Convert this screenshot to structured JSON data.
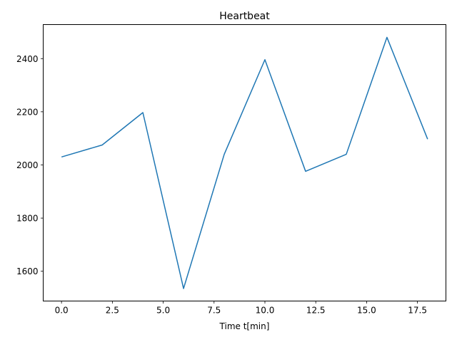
{
  "chart_data": {
    "type": "line",
    "title": "Heartbeat",
    "xlabel": "Time t[min]",
    "ylabel": "",
    "xlim": [
      -0.9,
      18.9
    ],
    "ylim": [
      1488,
      2528
    ],
    "x_ticks": [
      0.0,
      2.5,
      5.0,
      7.5,
      10.0,
      12.5,
      15.0,
      17.5
    ],
    "x_tick_labels": [
      "0.0",
      "2.5",
      "5.0",
      "7.5",
      "10.0",
      "12.5",
      "15.0",
      "17.5"
    ],
    "y_ticks": [
      1600,
      1800,
      2000,
      2200,
      2400
    ],
    "y_tick_labels": [
      "1600",
      "1800",
      "2000",
      "2200",
      "2400"
    ],
    "grid": false,
    "color": "#1f77b4",
    "series": [
      {
        "x": [
          0,
          2,
          4,
          6,
          8,
          10,
          12,
          14,
          16,
          18
        ],
        "values": [
          2030,
          2075,
          2197,
          1535,
          2040,
          2396,
          1976,
          2040,
          2480,
          2097
        ]
      }
    ]
  }
}
